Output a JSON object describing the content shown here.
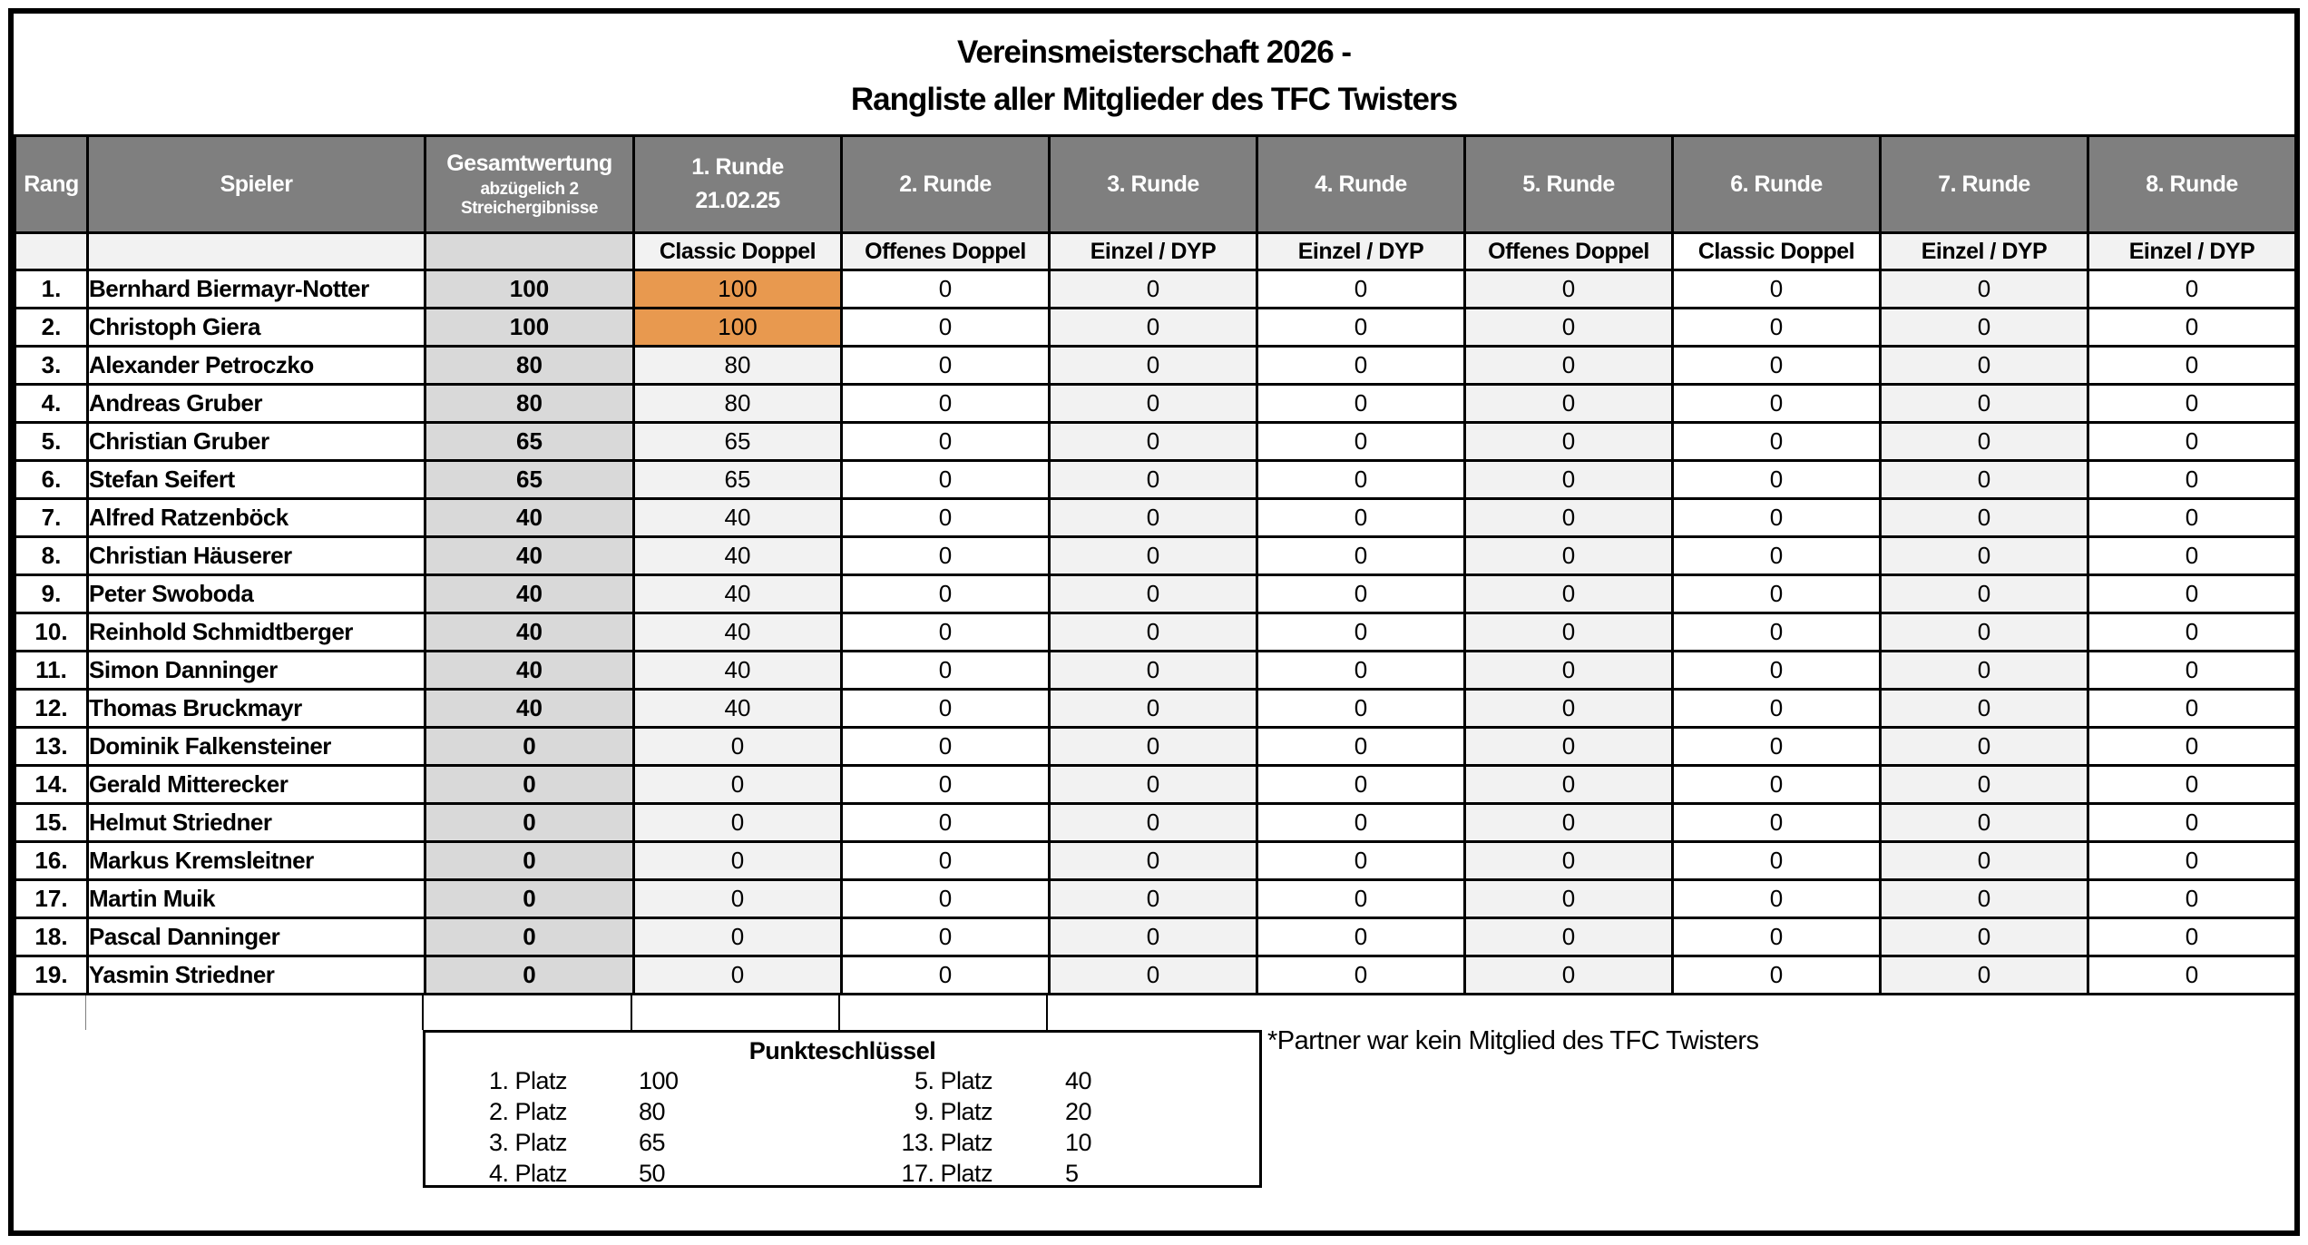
{
  "title": {
    "line1": "Vereinsmeisterschaft 2026 -",
    "line2": "Rangliste aller Mitglieder des TFC Twisters"
  },
  "table": {
    "rang_header": "Rang",
    "spieler_header": "Spieler",
    "gesamt_header": "Gesamtwertung",
    "gesamt_subheader": "abzügelich 2 Streichergibnisse",
    "rounds": [
      {
        "label": "1. Runde",
        "date": "21.02.25",
        "type": "Classic Doppel",
        "subheader_white": false
      },
      {
        "label": "2. Runde",
        "date": "",
        "type": "Offenes Doppel",
        "subheader_white": false
      },
      {
        "label": "3. Runde",
        "date": "",
        "type": "Einzel / DYP",
        "subheader_white": false
      },
      {
        "label": "4. Runde",
        "date": "",
        "type": "Einzel / DYP",
        "subheader_white": false
      },
      {
        "label": "5. Runde",
        "date": "",
        "type": "Offenes Doppel",
        "subheader_white": false
      },
      {
        "label": "6. Runde",
        "date": "",
        "type": "Classic Doppel",
        "subheader_white": true
      },
      {
        "label": "7. Runde",
        "date": "",
        "type": "Einzel / DYP",
        "subheader_white": false
      },
      {
        "label": "8. Runde",
        "date": "",
        "type": "Einzel / DYP",
        "subheader_white": false
      }
    ],
    "rows": [
      {
        "rank": "1.",
        "player": "Bernhard Biermayr-Notter",
        "total": "100",
        "rounds": [
          "100",
          "0",
          "0",
          "0",
          "0",
          "0",
          "0",
          "0"
        ],
        "highlight_round1": true
      },
      {
        "rank": "2.",
        "player": "Christoph Giera",
        "total": "100",
        "rounds": [
          "100",
          "0",
          "0",
          "0",
          "0",
          "0",
          "0",
          "0"
        ],
        "highlight_round1": true
      },
      {
        "rank": "3.",
        "player": "Alexander Petroczko",
        "total": "80",
        "rounds": [
          "80",
          "0",
          "0",
          "0",
          "0",
          "0",
          "0",
          "0"
        ],
        "highlight_round1": false
      },
      {
        "rank": "4.",
        "player": "Andreas Gruber",
        "total": "80",
        "rounds": [
          "80",
          "0",
          "0",
          "0",
          "0",
          "0",
          "0",
          "0"
        ],
        "highlight_round1": false
      },
      {
        "rank": "5.",
        "player": "Christian Gruber",
        "total": "65",
        "rounds": [
          "65",
          "0",
          "0",
          "0",
          "0",
          "0",
          "0",
          "0"
        ],
        "highlight_round1": false
      },
      {
        "rank": "6.",
        "player": "Stefan Seifert",
        "total": "65",
        "rounds": [
          "65",
          "0",
          "0",
          "0",
          "0",
          "0",
          "0",
          "0"
        ],
        "highlight_round1": false
      },
      {
        "rank": "7.",
        "player": "Alfred Ratzenböck",
        "total": "40",
        "rounds": [
          "40",
          "0",
          "0",
          "0",
          "0",
          "0",
          "0",
          "0"
        ],
        "highlight_round1": false
      },
      {
        "rank": "8.",
        "player": "Christian Häuserer",
        "total": "40",
        "rounds": [
          "40",
          "0",
          "0",
          "0",
          "0",
          "0",
          "0",
          "0"
        ],
        "highlight_round1": false
      },
      {
        "rank": "9.",
        "player": "Peter Swoboda",
        "total": "40",
        "rounds": [
          "40",
          "0",
          "0",
          "0",
          "0",
          "0",
          "0",
          "0"
        ],
        "highlight_round1": false
      },
      {
        "rank": "10.",
        "player": "Reinhold Schmidtberger",
        "total": "40",
        "rounds": [
          "40",
          "0",
          "0",
          "0",
          "0",
          "0",
          "0",
          "0"
        ],
        "highlight_round1": false
      },
      {
        "rank": "11.",
        "player": "Simon Danninger",
        "total": "40",
        "rounds": [
          "40",
          "0",
          "0",
          "0",
          "0",
          "0",
          "0",
          "0"
        ],
        "highlight_round1": false
      },
      {
        "rank": "12.",
        "player": "Thomas Bruckmayr",
        "total": "40",
        "rounds": [
          "40",
          "0",
          "0",
          "0",
          "0",
          "0",
          "0",
          "0"
        ],
        "highlight_round1": false
      },
      {
        "rank": "13.",
        "player": "Dominik Falkensteiner",
        "total": "0",
        "rounds": [
          "0",
          "0",
          "0",
          "0",
          "0",
          "0",
          "0",
          "0"
        ],
        "highlight_round1": false
      },
      {
        "rank": "14.",
        "player": "Gerald Mitterecker",
        "total": "0",
        "rounds": [
          "0",
          "0",
          "0",
          "0",
          "0",
          "0",
          "0",
          "0"
        ],
        "highlight_round1": false
      },
      {
        "rank": "15.",
        "player": "Helmut Striedner",
        "total": "0",
        "rounds": [
          "0",
          "0",
          "0",
          "0",
          "0",
          "0",
          "0",
          "0"
        ],
        "highlight_round1": false
      },
      {
        "rank": "16.",
        "player": "Markus Kremsleitner",
        "total": "0",
        "rounds": [
          "0",
          "0",
          "0",
          "0",
          "0",
          "0",
          "0",
          "0"
        ],
        "highlight_round1": false
      },
      {
        "rank": "17.",
        "player": "Martin Muik",
        "total": "0",
        "rounds": [
          "0",
          "0",
          "0",
          "0",
          "0",
          "0",
          "0",
          "0"
        ],
        "highlight_round1": false
      },
      {
        "rank": "18.",
        "player": "Pascal Danninger",
        "total": "0",
        "rounds": [
          "0",
          "0",
          "0",
          "0",
          "0",
          "0",
          "0",
          "0"
        ],
        "highlight_round1": false
      },
      {
        "rank": "19.",
        "player": "Yasmin Striedner",
        "total": "0",
        "rounds": [
          "0",
          "0",
          "0",
          "0",
          "0",
          "0",
          "0",
          "0"
        ],
        "highlight_round1": false
      }
    ]
  },
  "punkteschluessel": {
    "title": "Punkteschlüssel",
    "entries_left": [
      [
        "1. Platz",
        "100"
      ],
      [
        "2. Platz",
        "80"
      ],
      [
        "3. Platz",
        "65"
      ],
      [
        "4. Platz",
        "50"
      ]
    ],
    "entries_right": [
      [
        "5. Platz",
        "40"
      ],
      [
        "9. Platz",
        "20"
      ],
      [
        "13. Platz",
        "10"
      ],
      [
        "17. Platz",
        "5"
      ]
    ]
  },
  "footnote": "*Partner war kein Mitglied des TFC Twisters",
  "colors": {
    "header_bg": "#7f7f7f",
    "header_text": "#ffffff",
    "subheader_bg": "#f2f2f2",
    "gesamt_col_bg": "#d9d9d9",
    "round_odd_bg": "#f2f2f2",
    "round_even_bg": "#ffffff",
    "highlight_orange": "#e8994f",
    "border": "#000000"
  }
}
